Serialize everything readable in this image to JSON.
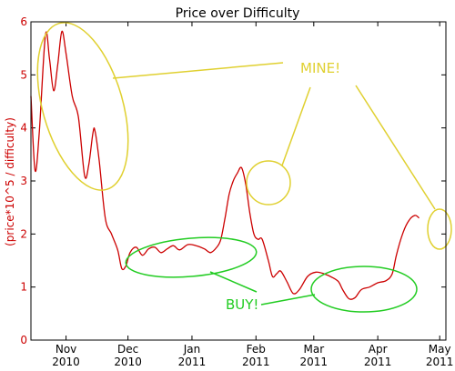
{
  "chart_data": {
    "type": "line",
    "title": "Price over Difficulty",
    "xlabel": "",
    "ylabel": "(price*10^5 / difficulty)",
    "ylim": [
      0,
      6
    ],
    "yticks": [
      "0",
      "1",
      "2",
      "3",
      "4",
      "5",
      "6"
    ],
    "xlim": [
      "2010-10-15",
      "2011-05-04"
    ],
    "xticks": [
      {
        "date": "2010-11-01",
        "line1": "Nov",
        "line2": "2010"
      },
      {
        "date": "2010-12-01",
        "line1": "Dec",
        "line2": "2010"
      },
      {
        "date": "2011-01-01",
        "line1": "Jan",
        "line2": "2011"
      },
      {
        "date": "2011-02-01",
        "line1": "Feb",
        "line2": "2011"
      },
      {
        "date": "2011-03-01",
        "line1": "Mar",
        "line2": "2011"
      },
      {
        "date": "2011-04-01",
        "line1": "Apr",
        "line2": "2011"
      },
      {
        "date": "2011-05-01",
        "line1": "May",
        "line2": "2011"
      }
    ],
    "grid": false,
    "series": [
      {
        "color": "#cc0000",
        "points": [
          [
            "2010-10-15",
            4.6
          ],
          [
            "2010-10-17",
            3.2
          ],
          [
            "2010-10-19",
            3.9
          ],
          [
            "2010-10-22",
            5.75
          ],
          [
            "2010-10-24",
            5.3
          ],
          [
            "2010-10-26",
            4.7
          ],
          [
            "2010-10-28",
            5.2
          ],
          [
            "2010-10-30",
            5.82
          ],
          [
            "2010-11-01",
            5.4
          ],
          [
            "2010-11-04",
            4.6
          ],
          [
            "2010-11-07",
            4.2
          ],
          [
            "2010-11-10",
            3.1
          ],
          [
            "2010-11-12",
            3.3
          ],
          [
            "2010-11-14",
            3.9
          ],
          [
            "2010-11-15",
            3.95
          ],
          [
            "2010-11-17",
            3.4
          ],
          [
            "2010-11-20",
            2.3
          ],
          [
            "2010-11-23",
            2.0
          ],
          [
            "2010-11-26",
            1.7
          ],
          [
            "2010-11-28",
            1.35
          ],
          [
            "2010-11-30",
            1.4
          ],
          [
            "2010-12-02",
            1.65
          ],
          [
            "2010-12-05",
            1.75
          ],
          [
            "2010-12-08",
            1.6
          ],
          [
            "2010-12-11",
            1.72
          ],
          [
            "2010-12-14",
            1.75
          ],
          [
            "2010-12-17",
            1.65
          ],
          [
            "2010-12-20",
            1.72
          ],
          [
            "2010-12-23",
            1.78
          ],
          [
            "2010-12-26",
            1.7
          ],
          [
            "2010-12-30",
            1.8
          ],
          [
            "2011-01-03",
            1.78
          ],
          [
            "2011-01-07",
            1.72
          ],
          [
            "2011-01-10",
            1.65
          ],
          [
            "2011-01-13",
            1.75
          ],
          [
            "2011-01-15",
            1.9
          ],
          [
            "2011-01-17",
            2.3
          ],
          [
            "2011-01-19",
            2.75
          ],
          [
            "2011-01-21",
            3.0
          ],
          [
            "2011-01-23",
            3.15
          ],
          [
            "2011-01-25",
            3.25
          ],
          [
            "2011-01-27",
            2.95
          ],
          [
            "2011-01-29",
            2.4
          ],
          [
            "2011-01-31",
            2.0
          ],
          [
            "2011-02-02",
            1.9
          ],
          [
            "2011-02-04",
            1.9
          ],
          [
            "2011-02-07",
            1.5
          ],
          [
            "2011-02-09",
            1.2
          ],
          [
            "2011-02-11",
            1.25
          ],
          [
            "2011-02-13",
            1.3
          ],
          [
            "2011-02-16",
            1.1
          ],
          [
            "2011-02-19",
            0.88
          ],
          [
            "2011-02-22",
            0.95
          ],
          [
            "2011-02-26",
            1.2
          ],
          [
            "2011-03-02",
            1.28
          ],
          [
            "2011-03-06",
            1.25
          ],
          [
            "2011-03-10",
            1.18
          ],
          [
            "2011-03-13",
            1.1
          ],
          [
            "2011-03-15",
            0.95
          ],
          [
            "2011-03-18",
            0.78
          ],
          [
            "2011-03-21",
            0.8
          ],
          [
            "2011-03-24",
            0.95
          ],
          [
            "2011-03-28",
            1.0
          ],
          [
            "2011-04-01",
            1.08
          ],
          [
            "2011-04-05",
            1.12
          ],
          [
            "2011-04-08",
            1.25
          ],
          [
            "2011-04-10",
            1.6
          ],
          [
            "2011-04-13",
            2.0
          ],
          [
            "2011-04-16",
            2.25
          ],
          [
            "2011-04-19",
            2.35
          ],
          [
            "2011-04-21",
            2.3
          ]
        ]
      }
    ],
    "annotations": {
      "mine_label": "MINE!",
      "buy_label": "BUY!",
      "mine_color": "#e0d030",
      "buy_color": "#22cc22"
    },
    "colors": {
      "axis_text": "#cc0000",
      "line": "#cc0000",
      "frame": "#000000"
    }
  }
}
